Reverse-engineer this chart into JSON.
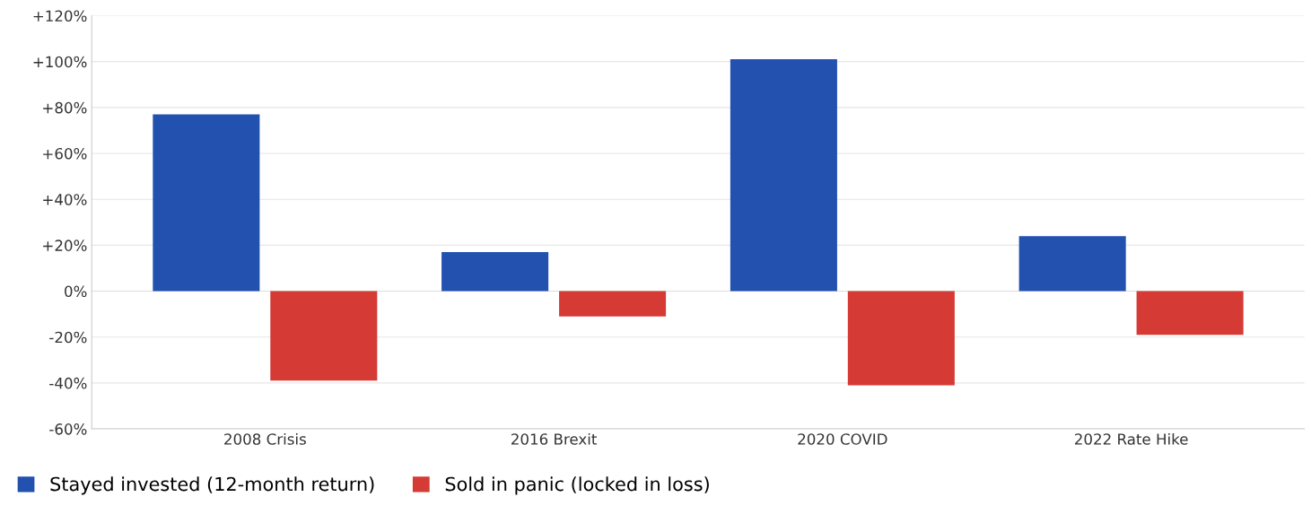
{
  "chart_data": {
    "type": "bar",
    "categories": [
      "2008 Crisis",
      "2016 Brexit",
      "2020 COVID",
      "2022 Rate Hike"
    ],
    "series": [
      {
        "name": "Stayed invested (12-month return)",
        "color": "#2251b0",
        "values": [
          77,
          17,
          101,
          24
        ]
      },
      {
        "name": "Sold in panic (locked in loss)",
        "color": "#d63a35",
        "values": [
          -39,
          -11,
          -41,
          -19
        ]
      }
    ],
    "ylim": [
      -60,
      120
    ],
    "yticks": [
      {
        "value": -60,
        "label": "-60%"
      },
      {
        "value": -40,
        "label": "-40%"
      },
      {
        "value": -20,
        "label": "-20%"
      },
      {
        "value": 0,
        "label": "0%"
      },
      {
        "value": 20,
        "label": "+20%"
      },
      {
        "value": 40,
        "label": "+40%"
      },
      {
        "value": 60,
        "label": "+60%"
      },
      {
        "value": 80,
        "label": "+80%"
      },
      {
        "value": 100,
        "label": "+100%"
      },
      {
        "value": 120,
        "label": "+120%"
      }
    ],
    "grid": "y",
    "legend": "bottom left"
  }
}
